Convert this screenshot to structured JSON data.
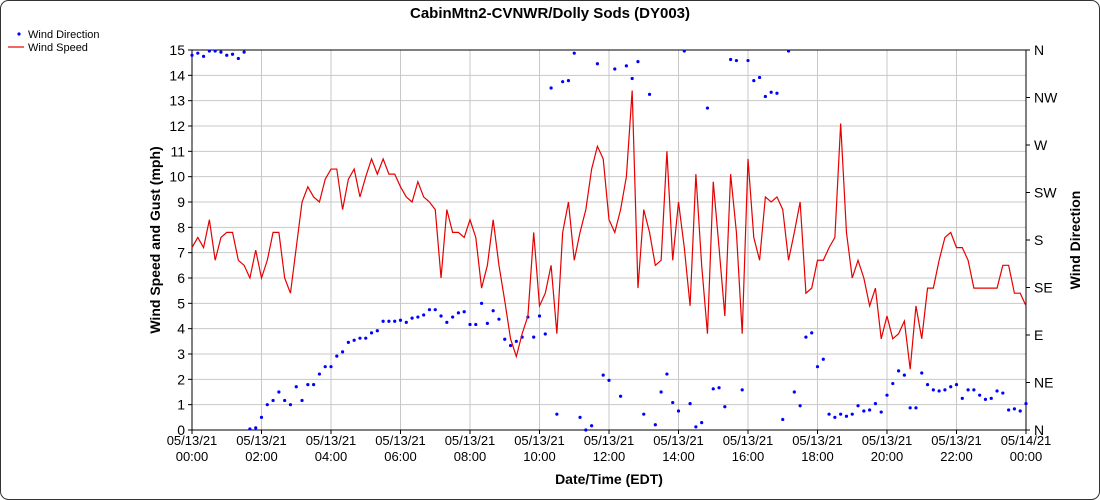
{
  "chart_data": {
    "type": "line",
    "title": "CabinMtn2-CVNWR/Dolly Sods (DY003)",
    "xlabel": "Date/Time (EDT)",
    "ylabel": "Wind Speed and Gust (mph)",
    "y2label": "Wind Direction",
    "grid": true,
    "legend": "top-left",
    "x": [
      "05/13/21 00:00",
      "05/13/21 00:10",
      "05/13/21 00:20",
      "05/13/21 00:30",
      "05/13/21 00:40",
      "05/13/21 00:50",
      "05/13/21 01:00",
      "05/13/21 01:10",
      "05/13/21 01:20",
      "05/13/21 01:30",
      "05/13/21 01:40",
      "05/13/21 01:50",
      "05/13/21 02:00",
      "05/13/21 02:10",
      "05/13/21 02:20",
      "05/13/21 02:30",
      "05/13/21 02:40",
      "05/13/21 02:50",
      "05/13/21 03:00",
      "05/13/21 03:10",
      "05/13/21 03:20",
      "05/13/21 03:30",
      "05/13/21 03:40",
      "05/13/21 03:50",
      "05/13/21 04:00",
      "05/13/21 04:10",
      "05/13/21 04:20",
      "05/13/21 04:30",
      "05/13/21 04:40",
      "05/13/21 04:50",
      "05/13/21 05:00",
      "05/13/21 05:10",
      "05/13/21 05:20",
      "05/13/21 05:30",
      "05/13/21 05:40",
      "05/13/21 05:50",
      "05/13/21 06:00",
      "05/13/21 06:10",
      "05/13/21 06:20",
      "05/13/21 06:30",
      "05/13/21 06:40",
      "05/13/21 06:50",
      "05/13/21 07:00",
      "05/13/21 07:10",
      "05/13/21 07:20",
      "05/13/21 07:30",
      "05/13/21 07:40",
      "05/13/21 07:50",
      "05/13/21 08:00",
      "05/13/21 08:10",
      "05/13/21 08:20",
      "05/13/21 08:30",
      "05/13/21 08:40",
      "05/13/21 08:50",
      "05/13/21 09:00",
      "05/13/21 09:10",
      "05/13/21 09:20",
      "05/13/21 09:30",
      "05/13/21 09:40",
      "05/13/21 09:50",
      "05/13/21 10:00",
      "05/13/21 10:10",
      "05/13/21 10:20",
      "05/13/21 10:30",
      "05/13/21 10:40",
      "05/13/21 10:50",
      "05/13/21 11:00",
      "05/13/21 11:10",
      "05/13/21 11:20",
      "05/13/21 11:30",
      "05/13/21 11:40",
      "05/13/21 11:50",
      "05/13/21 12:00",
      "05/13/21 12:10",
      "05/13/21 12:20",
      "05/13/21 12:30",
      "05/13/21 12:40",
      "05/13/21 12:50",
      "05/13/21 13:00",
      "05/13/21 13:10",
      "05/13/21 13:20",
      "05/13/21 13:30",
      "05/13/21 13:40",
      "05/13/21 13:50",
      "05/13/21 14:00",
      "05/13/21 14:10",
      "05/13/21 14:20",
      "05/13/21 14:30",
      "05/13/21 14:40",
      "05/13/21 14:50",
      "05/13/21 15:00",
      "05/13/21 15:10",
      "05/13/21 15:20",
      "05/13/21 15:30",
      "05/13/21 15:40",
      "05/13/21 15:50",
      "05/13/21 16:00",
      "05/13/21 16:10",
      "05/13/21 16:20",
      "05/13/21 16:30",
      "05/13/21 16:40",
      "05/13/21 16:50",
      "05/13/21 17:00",
      "05/13/21 17:10",
      "05/13/21 17:20",
      "05/13/21 17:30",
      "05/13/21 17:40",
      "05/13/21 17:50",
      "05/13/21 18:00",
      "05/13/21 18:10",
      "05/13/21 18:20",
      "05/13/21 18:30",
      "05/13/21 18:40",
      "05/13/21 18:50",
      "05/13/21 19:00",
      "05/13/21 19:10",
      "05/13/21 19:20",
      "05/13/21 19:30",
      "05/13/21 19:40",
      "05/13/21 19:50",
      "05/13/21 20:00",
      "05/13/21 20:10",
      "05/13/21 20:20",
      "05/13/21 20:30",
      "05/13/21 20:40",
      "05/13/21 20:50",
      "05/13/21 21:00",
      "05/13/21 21:10",
      "05/13/21 21:20",
      "05/13/21 21:30",
      "05/13/21 21:40",
      "05/13/21 21:50",
      "05/13/21 22:00",
      "05/13/21 22:10",
      "05/13/21 22:20",
      "05/13/21 22:30",
      "05/13/21 22:40",
      "05/13/21 22:50",
      "05/13/21 23:00",
      "05/13/21 23:10",
      "05/13/21 23:20",
      "05/13/21 23:30",
      "05/13/21 23:40",
      "05/13/21 23:50",
      "05/14/21 00:00"
    ],
    "xlim": [
      "05/13/21 00:00",
      "05/14/21 00:00"
    ],
    "xticks": [
      "05/13/21 00:00",
      "05/13/21 02:00",
      "05/13/21 04:00",
      "05/13/21 06:00",
      "05/13/21 08:00",
      "05/13/21 10:00",
      "05/13/21 12:00",
      "05/13/21 14:00",
      "05/13/21 16:00",
      "05/13/21 18:00",
      "05/13/21 20:00",
      "05/13/21 22:00",
      "05/14/21 00:00"
    ],
    "ylim": [
      0,
      15
    ],
    "yticks": [
      0,
      1,
      2,
      3,
      4,
      5,
      6,
      7,
      8,
      9,
      10,
      11,
      12,
      13,
      14,
      15
    ],
    "y2lim": [
      0,
      360
    ],
    "y2ticks": [
      {
        "value": 0,
        "label": "N"
      },
      {
        "value": 45,
        "label": "NE"
      },
      {
        "value": 90,
        "label": "E"
      },
      {
        "value": 135,
        "label": "SE"
      },
      {
        "value": 180,
        "label": "S"
      },
      {
        "value": 225,
        "label": "SW"
      },
      {
        "value": 270,
        "label": "W"
      },
      {
        "value": 315,
        "label": "NW"
      },
      {
        "value": 360,
        "label": "N"
      }
    ],
    "series": [
      {
        "name": "Wind Direction",
        "color": "#0000ff",
        "axis": "y2",
        "marker": "dot",
        "values": [
          355,
          357,
          354,
          359,
          359,
          358,
          355,
          356,
          352,
          358,
          1,
          2,
          12,
          24,
          28,
          36,
          28,
          24,
          41,
          28,
          43,
          43,
          53,
          60,
          60,
          70,
          74,
          83,
          85,
          87,
          87,
          92,
          94,
          103,
          103,
          103,
          104,
          102,
          106,
          107,
          109,
          114,
          114,
          108,
          102,
          107,
          111,
          112,
          100,
          100,
          120,
          101,
          113,
          105,
          86,
          80,
          84,
          88,
          107,
          88,
          108,
          91,
          324,
          15,
          330,
          331,
          357,
          12,
          0,
          4,
          347,
          52,
          47,
          342,
          32,
          345,
          333,
          349,
          15,
          318,
          5,
          36,
          53,
          26,
          18,
          359,
          25,
          3,
          7,
          305,
          39,
          40,
          22,
          351,
          350,
          38,
          350,
          331,
          334,
          316,
          320,
          319,
          10,
          359,
          36,
          23,
          88,
          92,
          60,
          67,
          15,
          12,
          15,
          13,
          15,
          23,
          18,
          19,
          25,
          17,
          33,
          44,
          56,
          52,
          21,
          21,
          54,
          43,
          38,
          37,
          38,
          41,
          43,
          30,
          38,
          38,
          33,
          29,
          30,
          37,
          35,
          19,
          20,
          18,
          25
        ]
      },
      {
        "name": "Wind Speed",
        "color": "#e60000",
        "marker": "line",
        "values": [
          7.2,
          7.6,
          7.2,
          8.3,
          6.7,
          7.6,
          7.8,
          7.8,
          6.7,
          6.5,
          6.0,
          7.1,
          6.0,
          6.7,
          7.8,
          7.8,
          6.0,
          5.4,
          7.2,
          9.0,
          9.6,
          9.2,
          9.0,
          9.9,
          10.3,
          10.3,
          8.7,
          9.9,
          10.3,
          9.2,
          10.0,
          10.7,
          10.1,
          10.7,
          10.1,
          10.1,
          9.6,
          9.2,
          9.0,
          9.8,
          9.2,
          9.0,
          8.7,
          6.0,
          8.7,
          7.8,
          7.8,
          7.6,
          8.3,
          7.6,
          5.6,
          6.5,
          8.3,
          6.5,
          5.1,
          3.6,
          2.9,
          3.8,
          4.5,
          7.8,
          4.9,
          5.4,
          6.5,
          3.8,
          7.8,
          9.0,
          6.7,
          7.8,
          8.7,
          10.3,
          11.2,
          10.7,
          8.3,
          7.8,
          8.7,
          10.0,
          13.4,
          5.6,
          8.7,
          7.8,
          6.5,
          6.7,
          11.0,
          6.7,
          9.0,
          7.2,
          4.9,
          10.1,
          6.5,
          3.8,
          9.8,
          7.2,
          4.5,
          10.1,
          7.8,
          3.8,
          10.7,
          7.6,
          6.7,
          9.2,
          9.0,
          9.2,
          8.7,
          6.7,
          7.8,
          9.0,
          5.4,
          5.6,
          6.7,
          6.7,
          7.2,
          7.6,
          12.1,
          7.8,
          6.0,
          6.7,
          6.0,
          4.9,
          5.6,
          3.6,
          4.5,
          3.6,
          3.8,
          4.3,
          2.4,
          4.9,
          3.6,
          5.6,
          5.6,
          6.7,
          7.6,
          7.8,
          7.2,
          7.2,
          6.7,
          5.6,
          5.6,
          5.6,
          5.6,
          5.6,
          6.5,
          6.5,
          5.4,
          5.4,
          4.9
        ]
      }
    ]
  }
}
